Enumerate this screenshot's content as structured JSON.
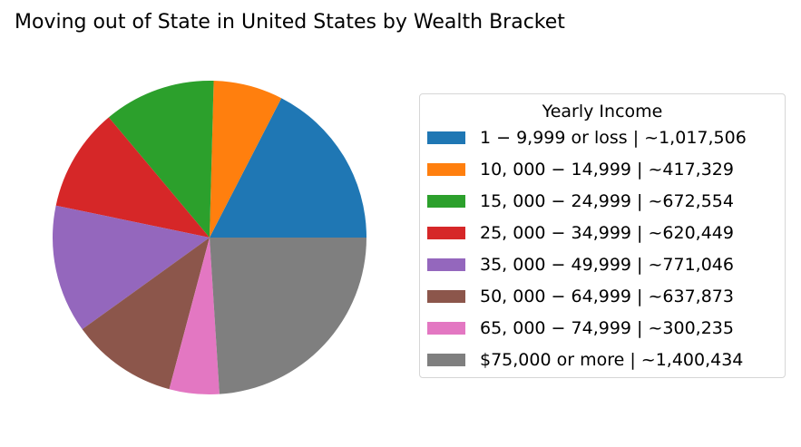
{
  "chart_data": {
    "type": "pie",
    "title": "Moving out of State in United States by Wealth Bracket",
    "legend": {
      "title": "Yearly Income",
      "placement": "right"
    },
    "start_angle_deg": 0,
    "direction": "counterclockwise",
    "slices": [
      {
        "label": "1 − 9,999 or loss  |  ~1,017,506",
        "value": 1017506,
        "color": "#1f77b4"
      },
      {
        "label": "10, 000 − 14,999  |  ~417,329",
        "value": 417329,
        "color": "#ff7f0e"
      },
      {
        "label": "15, 000 − 24,999  |  ~672,554",
        "value": 672554,
        "color": "#2ca02c"
      },
      {
        "label": "25, 000 − 34,999  |  ~620,449",
        "value": 620449,
        "color": "#d62728"
      },
      {
        "label": "35, 000 − 49,999  |  ~771,046",
        "value": 771046,
        "color": "#9467bd"
      },
      {
        "label": "50, 000 − 64,999  |  ~637,873",
        "value": 637873,
        "color": "#8c564b"
      },
      {
        "label": "65, 000 − 74,999  |  ~300,235",
        "value": 300235,
        "color": "#e377c2"
      },
      {
        "label": "$75,000 or more  |  ~1,400,434",
        "value": 1400434,
        "color": "#7f7f7f"
      }
    ]
  }
}
